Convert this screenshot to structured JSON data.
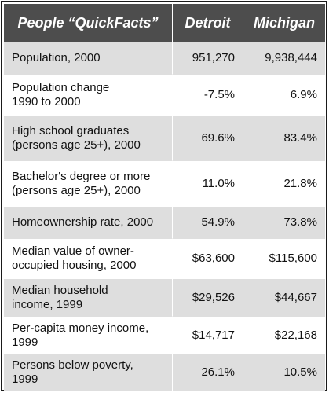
{
  "header": {
    "label": "People “QuickFacts”",
    "detroit": "Detroit",
    "michigan": "Michigan"
  },
  "rows": [
    {
      "label_lines": [
        "Population, 2000"
      ],
      "detroit": "951,270",
      "michigan": "9,938,444"
    },
    {
      "label_lines": [
        "Population change",
        "1990 to 2000"
      ],
      "detroit": "-7.5%",
      "michigan": "6.9%"
    },
    {
      "label_lines": [
        "High school graduates",
        "(persons age 25+), 2000"
      ],
      "detroit": "69.6%",
      "michigan": "83.4%"
    },
    {
      "label_lines": [
        "Bachelor's degree or more",
        "(persons age 25+), 2000"
      ],
      "detroit": "11.0%",
      "michigan": "21.8%"
    },
    {
      "label_lines": [
        "Homeownership rate, 2000"
      ],
      "detroit": "54.9%",
      "michigan": "73.8%"
    },
    {
      "label_lines": [
        "Median value of owner-",
        "occupied housing, 2000"
      ],
      "detroit": "$63,600",
      "michigan": "$115,600"
    },
    {
      "label_lines": [
        "Median household",
        "income, 1999"
      ],
      "detroit": "$29,526",
      "michigan": "$44,667"
    },
    {
      "label_lines": [
        "Per-capita money income,",
        "1999"
      ],
      "detroit": "$14,717",
      "michigan": "$22,168"
    },
    {
      "label_lines": [
        "Persons below poverty,",
        "1999"
      ],
      "detroit": "26.1%",
      "michigan": "10.5%"
    }
  ]
}
